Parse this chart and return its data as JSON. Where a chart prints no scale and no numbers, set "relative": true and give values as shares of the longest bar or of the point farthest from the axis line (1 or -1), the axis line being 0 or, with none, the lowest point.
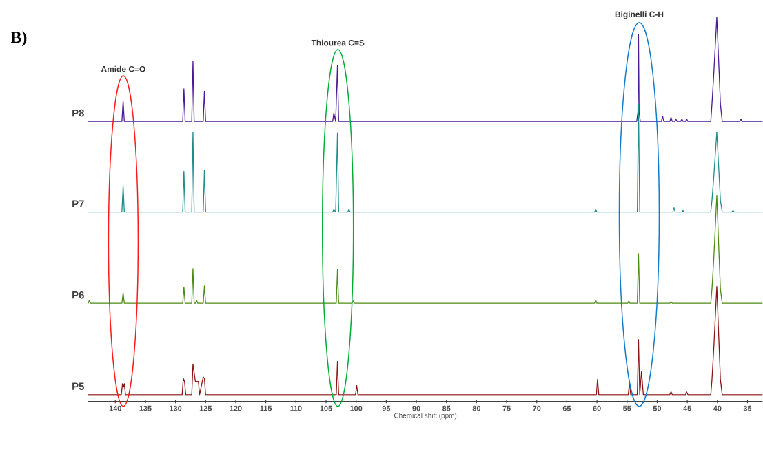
{
  "chart_data": {
    "type": "line",
    "relative": true,
    "xlabel": "Chemical shift (ppm)",
    "xlim": [
      144.5,
      32.5
    ],
    "xticks": [
      140,
      135,
      130,
      125,
      120,
      115,
      110,
      105,
      100,
      95,
      90,
      85,
      80,
      75,
      70,
      65,
      60,
      55,
      50,
      45,
      40,
      35
    ],
    "annotations": [
      "B)",
      "Amide C=O",
      "Thiourea C=S",
      "Biginelli C-H"
    ],
    "series": [
      {
        "name": "P8",
        "color": "#4b1a96",
        "x": [
          144.5,
          138.9,
          138.7,
          138.5,
          128.8,
          128.6,
          128.4,
          127.3,
          127.1,
          126.9,
          125.4,
          125.2,
          125.0,
          103.9,
          103.7,
          103.4,
          103.1,
          102.9,
          53.4,
          53.2,
          53.1,
          53.0,
          52.8,
          49.3,
          49.1,
          48.9,
          47.9,
          47.7,
          47.5,
          47.1,
          46.9,
          46.7,
          46.1,
          45.9,
          45.7,
          45.3,
          45.1,
          44.9,
          41.1,
          40.9,
          40.6,
          40.1,
          39.7,
          39.5,
          39.2,
          36.3,
          36.1,
          35.9,
          32.5
        ],
        "values": [
          0.724,
          0.724,
          0.778,
          0.724,
          0.724,
          0.81,
          0.724,
          0.724,
          0.883,
          0.724,
          0.724,
          0.804,
          0.724,
          0.724,
          0.746,
          0.724,
          0.872,
          0.724,
          0.724,
          0.748,
          0.955,
          0.748,
          0.724,
          0.724,
          0.738,
          0.724,
          0.724,
          0.735,
          0.724,
          0.724,
          0.73,
          0.724,
          0.724,
          0.73,
          0.724,
          0.724,
          0.73,
          0.724,
          0.724,
          0.77,
          0.85,
          1.0,
          0.85,
          0.77,
          0.724,
          0.724,
          0.73,
          0.724,
          0.724
        ]
      },
      {
        "name": "P7",
        "color": "#1f8c8c",
        "x": [
          144.5,
          138.9,
          138.7,
          138.5,
          128.8,
          128.6,
          128.4,
          127.3,
          127.1,
          126.9,
          125.4,
          125.2,
          125.0,
          103.9,
          103.7,
          103.4,
          103.1,
          102.9,
          101.4,
          101.2,
          101.0,
          60.4,
          60.2,
          60.0,
          53.3,
          53.1,
          52.9,
          47.4,
          47.2,
          47.0,
          45.9,
          45.7,
          45.5,
          41.1,
          40.9,
          40.6,
          40.1,
          39.7,
          39.5,
          39.2,
          37.6,
          37.4,
          37.2,
          32.5
        ],
        "values": [
          0.484,
          0.484,
          0.553,
          0.484,
          0.484,
          0.592,
          0.484,
          0.484,
          0.696,
          0.484,
          0.484,
          0.595,
          0.484,
          0.484,
          0.49,
          0.484,
          0.693,
          0.484,
          0.484,
          0.49,
          0.484,
          0.484,
          0.49,
          0.484,
          0.484,
          0.77,
          0.484,
          0.484,
          0.495,
          0.484,
          0.484,
          0.488,
          0.484,
          0.484,
          0.515,
          0.577,
          0.696,
          0.577,
          0.515,
          0.484,
          0.484,
          0.488,
          0.484,
          0.484
        ]
      },
      {
        "name": "P6",
        "color": "#4c8c14",
        "x": [
          144.5,
          144.3,
          144.1,
          138.9,
          138.7,
          138.5,
          128.8,
          128.6,
          128.4,
          127.3,
          127.1,
          126.9,
          126.7,
          126.5,
          126.3,
          125.4,
          125.2,
          125.0,
          103.3,
          103.1,
          102.9,
          100.7,
          100.5,
          100.3,
          60.4,
          60.2,
          60.0,
          54.9,
          54.7,
          54.5,
          53.3,
          53.1,
          52.9,
          47.9,
          47.7,
          47.5,
          41.1,
          40.9,
          40.6,
          40.1,
          39.7,
          39.5,
          39.2,
          32.5
        ],
        "values": [
          0.242,
          0.25,
          0.242,
          0.242,
          0.27,
          0.242,
          0.242,
          0.285,
          0.242,
          0.242,
          0.334,
          0.242,
          0.242,
          0.25,
          0.242,
          0.242,
          0.288,
          0.242,
          0.242,
          0.331,
          0.242,
          0.242,
          0.248,
          0.242,
          0.242,
          0.25,
          0.242,
          0.242,
          0.248,
          0.242,
          0.242,
          0.374,
          0.242,
          0.242,
          0.246,
          0.242,
          0.242,
          0.28,
          0.36,
          0.528,
          0.36,
          0.28,
          0.242,
          0.242
        ]
      },
      {
        "name": "P5",
        "color": "#8b1414",
        "x": [
          144.5,
          139.0,
          138.8,
          138.65,
          138.5,
          138.3,
          128.9,
          128.7,
          128.5,
          128.3,
          127.3,
          127.1,
          126.7,
          126.2,
          126.0,
          125.4,
          125.2,
          125.0,
          103.3,
          103.1,
          102.9,
          100.1,
          99.9,
          99.7,
          60.1,
          59.9,
          59.7,
          54.8,
          54.6,
          54.4,
          53.3,
          53.1,
          52.9,
          52.6,
          52.3,
          47.9,
          47.7,
          47.5,
          45.3,
          45.1,
          44.9,
          41.1,
          40.9,
          40.6,
          40.1,
          39.7,
          39.5,
          39.2,
          32.5
        ],
        "values": [
          0.0,
          0.0,
          0.029,
          0.02,
          0.029,
          0.0,
          0.0,
          0.043,
          0.035,
          0.0,
          0.0,
          0.081,
          0.035,
          0.035,
          0.0,
          0.047,
          0.043,
          0.0,
          0.0,
          0.088,
          0.0,
          0.0,
          0.024,
          0.0,
          0.0,
          0.041,
          0.0,
          0.0,
          0.032,
          0.0,
          0.0,
          0.146,
          0.0,
          0.061,
          0.0,
          0.0,
          0.008,
          0.0,
          0.0,
          0.007,
          0.0,
          0.0,
          0.04,
          0.123,
          0.287,
          0.123,
          0.04,
          0.0,
          0.0
        ]
      }
    ]
  }
}
